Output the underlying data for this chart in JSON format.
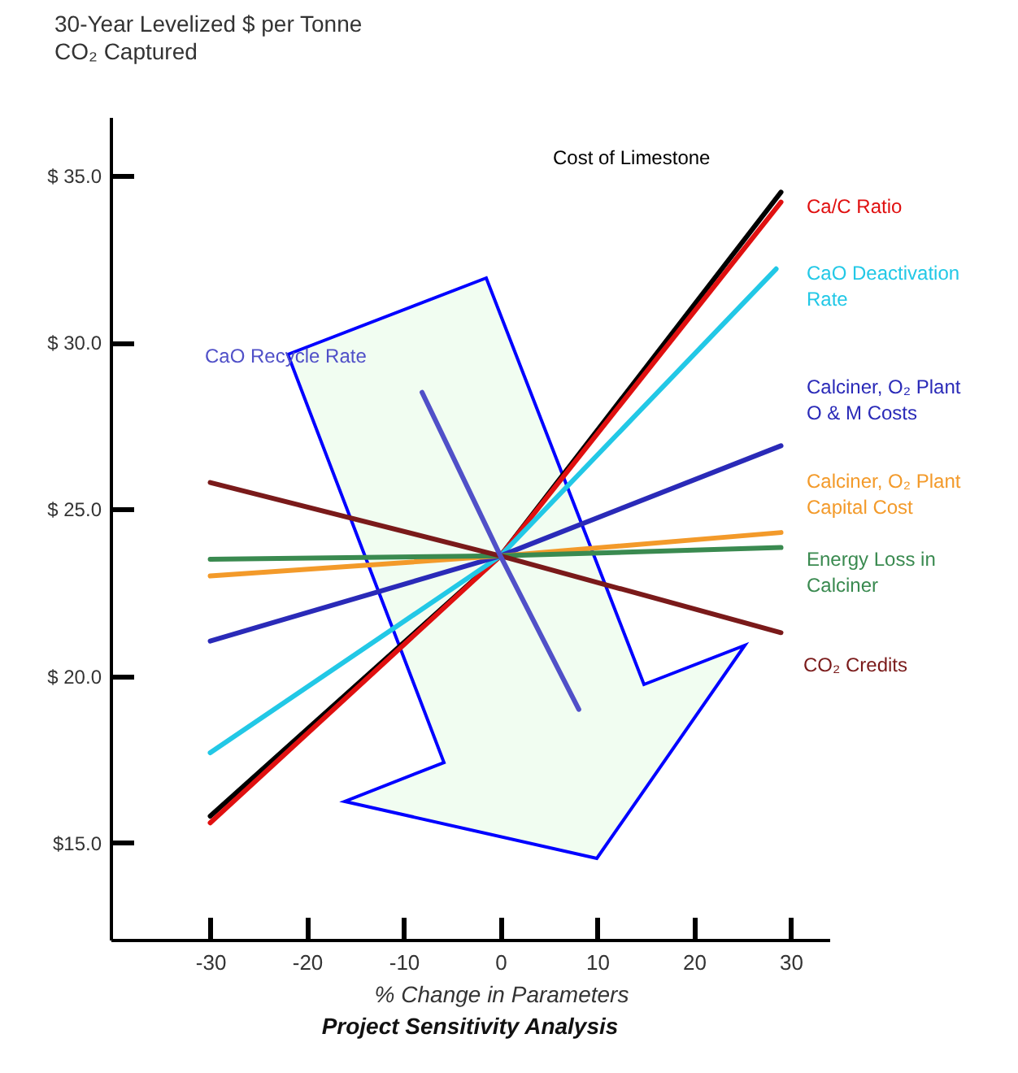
{
  "chart_data": {
    "type": "line",
    "title": "Project Sensitivity Analysis",
    "xlabel": "% Change in Parameters",
    "ylabel": "30-Year Levelized $ per Tonne\nCO₂ Captured",
    "xlim": [
      -40.3,
      34
    ],
    "xticks": [
      -30,
      -20,
      -10,
      0,
      10,
      20,
      30
    ],
    "ylim": [
      12.1,
      36.75
    ],
    "yticks": [
      {
        "value": 15,
        "label": "$15.0"
      },
      {
        "value": 20,
        "label": "$ 20.0"
      },
      {
        "value": 25,
        "label": "$ 25.0"
      },
      {
        "value": 30,
        "label": "$ 30.0"
      },
      {
        "value": 35,
        "label": "$ 35.0"
      }
    ],
    "grid": false,
    "legend": false,
    "marker": "none",
    "line_style": "solid",
    "series": [
      {
        "name": "Cost of Limestone",
        "color": "#000000",
        "x": [
          -30,
          0,
          29
        ],
        "values": [
          15.8,
          23.6,
          34.5
        ]
      },
      {
        "name": "Ca/C Ratio",
        "color": "#e01010",
        "x": [
          -30,
          0,
          29
        ],
        "values": [
          15.6,
          23.6,
          34.2
        ]
      },
      {
        "name": "CaO Deactivation\nRate",
        "color": "#22c8e6",
        "x": [
          -30,
          0,
          28.5
        ],
        "values": [
          17.7,
          23.6,
          32.2
        ]
      },
      {
        "name": "Calciner, O₂ Plant\nO & M Costs",
        "color": "#2a2ab8",
        "x": [
          -30,
          0,
          29
        ],
        "values": [
          21.05,
          23.6,
          26.9
        ]
      },
      {
        "name": "Calciner, O₂ Plant\nCapital Cost",
        "color": "#f39a2a",
        "x": [
          -30,
          0,
          29
        ],
        "values": [
          23.0,
          23.6,
          24.3
        ]
      },
      {
        "name": "Energy Loss in\nCalciner",
        "color": "#3a8a50",
        "x": [
          -30,
          0,
          29
        ],
        "values": [
          23.5,
          23.6,
          23.85
        ]
      },
      {
        "name": "CO₂ Credits",
        "color": "#7a1a1a",
        "x": [
          -30,
          0,
          29
        ],
        "values": [
          25.8,
          23.6,
          21.3
        ]
      },
      {
        "name": "CaO Recycle Rate",
        "color": "#5050c8",
        "x": [
          -8.1,
          0,
          8.1
        ],
        "values": [
          28.5,
          23.6,
          19.0
        ]
      }
    ]
  }
}
